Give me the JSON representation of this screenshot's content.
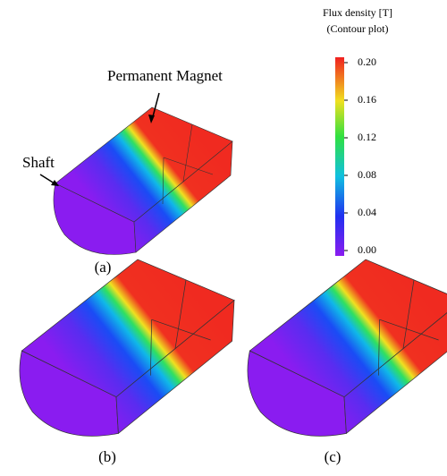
{
  "colorbar": {
    "title": [
      "Flux density [T]",
      "(Contour plot)"
    ],
    "range": [
      0,
      0.2
    ],
    "ticks": [
      {
        "value": 0,
        "label": "0.00"
      },
      {
        "value": 0.04,
        "label": "0.04"
      },
      {
        "value": 0.08,
        "label": "0.08"
      },
      {
        "value": 0.12,
        "label": "0.12"
      },
      {
        "value": 0.16,
        "label": "0.16"
      },
      {
        "value": 0.2,
        "label": "0.20"
      }
    ]
  },
  "annotations": {
    "magnet": "Permanent Magnet",
    "shaft": "Shaft"
  },
  "panels": [
    "(a)",
    "(b)",
    "(c)"
  ]
}
